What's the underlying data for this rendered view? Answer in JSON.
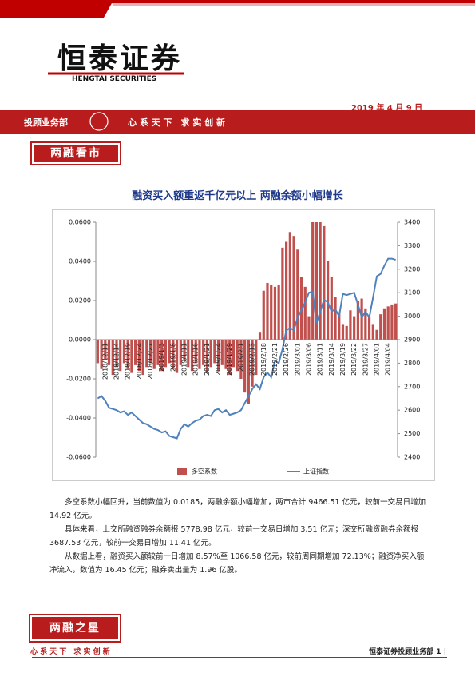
{
  "header": {
    "logo": "恒泰证券",
    "logo_en": "HENGTAI SECURITIES",
    "date": "2019 年 4 月 9 日",
    "department": "投顾业务部",
    "slogan": "心 系 天 下　求 实 创 新"
  },
  "section_title": "两融看市",
  "chart_data": {
    "type": "bar",
    "title": "融资买入额重返千亿元以上 两融余额小幅增长",
    "categories": [
      null,
      null,
      "2018/12/11",
      null,
      null,
      "2018/12/14",
      null,
      null,
      "2018/12/19",
      null,
      null,
      "2018/12/24",
      null,
      null,
      "2018/12/27",
      null,
      null,
      "2019/1/3",
      null,
      null,
      "2019/1/8",
      null,
      null,
      "2019/1/11",
      null,
      null,
      "2019/1/16",
      null,
      null,
      "2019/1/21",
      null,
      null,
      "2019/1/24",
      null,
      null,
      "2019/1/29",
      null,
      null,
      "2019/2/1",
      null,
      null,
      "2019/2/13",
      null,
      null,
      "2019/2/18",
      null,
      null,
      "2019/2/21",
      null,
      null,
      "2019/2/26",
      null,
      null,
      "2019/3/01",
      null,
      null,
      "2019/3/06",
      null,
      null,
      "2019/3/11",
      null,
      null,
      "2019/3/14",
      null,
      null,
      "2019/3/19",
      null,
      null,
      "2019/3/22",
      null,
      null,
      "2019/3/27",
      null,
      null,
      "2019/4/01",
      null,
      null,
      "2019/4/04",
      null,
      null
    ],
    "series": [
      {
        "name": "多空系数",
        "color": "#c0504d",
        "values": [
          -0.012,
          -0.015,
          -0.01,
          -0.013,
          -0.018,
          -0.014,
          -0.016,
          -0.012,
          -0.015,
          -0.017,
          -0.013,
          -0.016,
          -0.018,
          -0.014,
          -0.012,
          -0.015,
          -0.013,
          -0.016,
          -0.014,
          -0.012,
          -0.015,
          -0.017,
          -0.013,
          -0.011,
          -0.014,
          -0.016,
          -0.012,
          -0.015,
          -0.013,
          -0.017,
          -0.014,
          -0.012,
          -0.016,
          -0.013,
          -0.015,
          -0.018,
          -0.014,
          -0.016,
          -0.02,
          -0.027,
          -0.033,
          -0.024,
          -0.018,
          0.004,
          0.025,
          0.029,
          0.028,
          0.027,
          0.028,
          0.047,
          0.05,
          0.055,
          0.053,
          0.046,
          0.032,
          0.027,
          0.012,
          0.06,
          0.06,
          0.06,
          0.058,
          0.04,
          0.032,
          0.022,
          0.014,
          0.008,
          0.007,
          0.015,
          0.012,
          0.02,
          0.021,
          0.016,
          0.012,
          0.008,
          0.005,
          0.013,
          0.016,
          0.017,
          0.018,
          0.0185
        ]
      },
      {
        "name": "上证指数",
        "color": "#4f81bd",
        "axis": "y2",
        "values": [
          2650,
          2660,
          2640,
          2610,
          2605,
          2600,
          2590,
          2595,
          2580,
          2590,
          2575,
          2560,
          2545,
          2540,
          2530,
          2520,
          2515,
          2505,
          2510,
          2490,
          2485,
          2480,
          2520,
          2540,
          2530,
          2545,
          2555,
          2560,
          2575,
          2580,
          2575,
          2600,
          2605,
          2590,
          2600,
          2580,
          2585,
          2590,
          2600,
          2630,
          2660,
          2690,
          2710,
          2690,
          2740,
          2760,
          2740,
          2810,
          2800,
          2860,
          2940,
          2950,
          2940,
          2995,
          3025,
          3060,
          3100,
          3105,
          2970,
          3020,
          3070,
          3060,
          3020,
          3030,
          3000,
          3095,
          3090,
          3095,
          3100,
          3050,
          2995,
          3020,
          2995,
          3080,
          3170,
          3180,
          3215,
          3245,
          3245,
          3240
        ]
      }
    ],
    "ylim": [
      -0.06,
      0.06
    ],
    "yticks": [
      {
        "value": 0.06,
        "label": "0.0600"
      },
      {
        "value": 0.04,
        "label": "0.0400"
      },
      {
        "value": 0.02,
        "label": "0.0200"
      },
      {
        "value": 0,
        "label": "0.0000"
      },
      {
        "value": -0.02,
        "label": "-0.0200"
      },
      {
        "value": -0.04,
        "label": "-0.0400"
      },
      {
        "value": -0.06,
        "label": "-0.0600"
      }
    ],
    "y2lim": [
      2400,
      3400
    ],
    "y2ticks": [
      3400,
      3300,
      3200,
      3100,
      3000,
      2900,
      2800,
      2700,
      2600,
      2500,
      2400
    ],
    "legend": "bottom"
  },
  "paragraphs": [
    "多空系数小幅回升，当前数值为 0.0185，两融余额小幅增加，两市合计 9466.51 亿元，较前一交易日增加 14.92 亿元。",
    "具体来看，上交所融资融券余额报 5778.98 亿元，较前一交易日增加 3.51 亿元；深交所融资融券余额报 3687.53 亿元，较前一交易日增加 11.41 亿元。",
    "从数据上看，融资买入额较前一日增加 8.57%至 1066.58 亿元，较前周同期增加 72.13%；融资净买入额净流入，数值为 16.45 亿元；融券卖出量为 1.96 亿股。"
  ],
  "footer": {
    "section_title": "两融之星",
    "slogan": "心 系 天 下　求 实 创 新",
    "page": "恒泰证券投顾业务部 1 |"
  }
}
